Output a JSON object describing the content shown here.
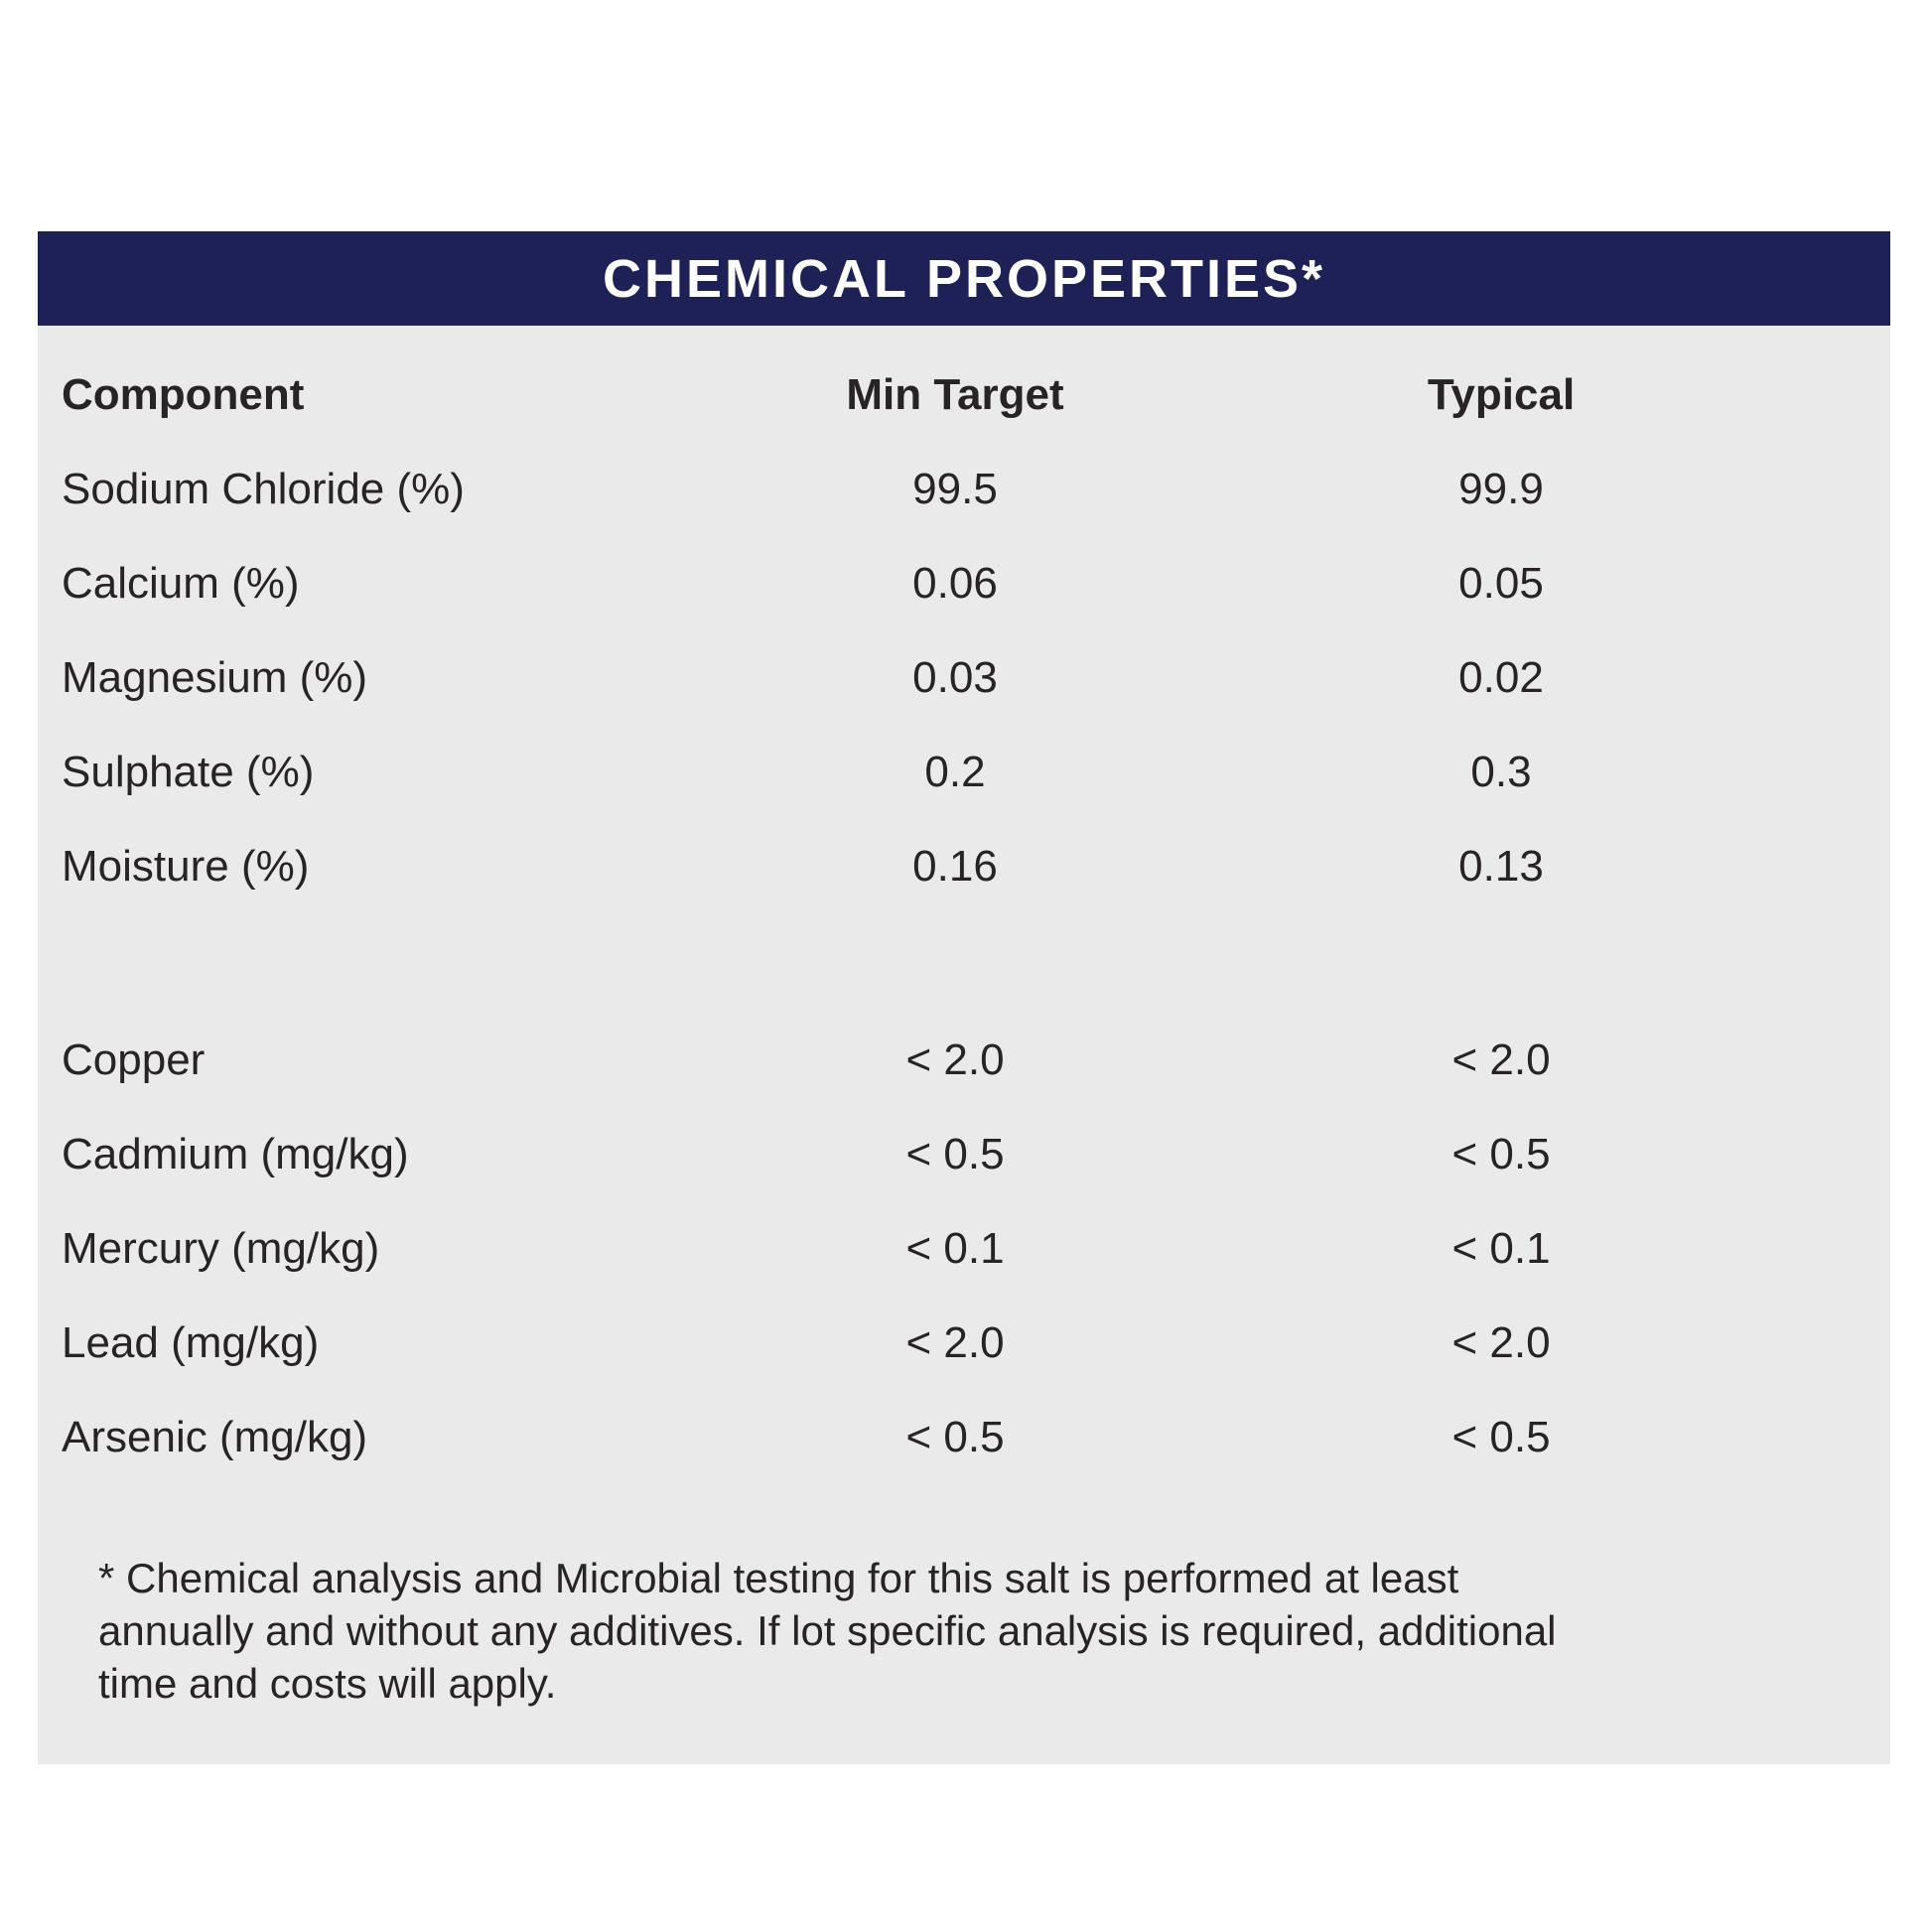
{
  "title": "CHEMICAL PROPERTIES*",
  "colors": {
    "header_bar_bg": "#1e2156",
    "panel_bg": "#ebeaea",
    "title_text": "#ffffff",
    "body_text": "#282425"
  },
  "table": {
    "columns": [
      "Component",
      "Min Target",
      "Typical"
    ],
    "group1": [
      {
        "component": "Sodium Chloride (%)",
        "min_target": "99.5",
        "typical": "99.9"
      },
      {
        "component": "Calcium (%)",
        "min_target": "0.06",
        "typical": "0.05"
      },
      {
        "component": "Magnesium (%)",
        "min_target": "0.03",
        "typical": "0.02"
      },
      {
        "component": "Sulphate (%)",
        "min_target": "0.2",
        "typical": "0.3"
      },
      {
        "component": "Moisture (%)",
        "min_target": "0.16",
        "typical": "0.13"
      }
    ],
    "group2": [
      {
        "component": "Copper",
        "min_target": "< 2.0",
        "typical": "< 2.0"
      },
      {
        "component": "Cadmium (mg/kg)",
        "min_target": "< 0.5",
        "typical": "< 0.5"
      },
      {
        "component": "Mercury (mg/kg)",
        "min_target": "< 0.1",
        "typical": "< 0.1"
      },
      {
        "component": "Lead (mg/kg)",
        "min_target": "< 2.0",
        "typical": "< 2.0"
      },
      {
        "component": "Arsenic (mg/kg)",
        "min_target": "< 0.5",
        "typical": "< 0.5"
      }
    ]
  },
  "footnote": {
    "full_text": "* Chemical analysis and Microbial testing for this salt is performed at least annually and without any additives. If lot specific analysis is required, additional time and costs will apply.",
    "lines": [
      "* Chemical analysis and Microbial testing for this salt is performed at least",
      "annually and without any additives. If lot specific analysis is required, additional",
      "time and costs will apply."
    ]
  }
}
